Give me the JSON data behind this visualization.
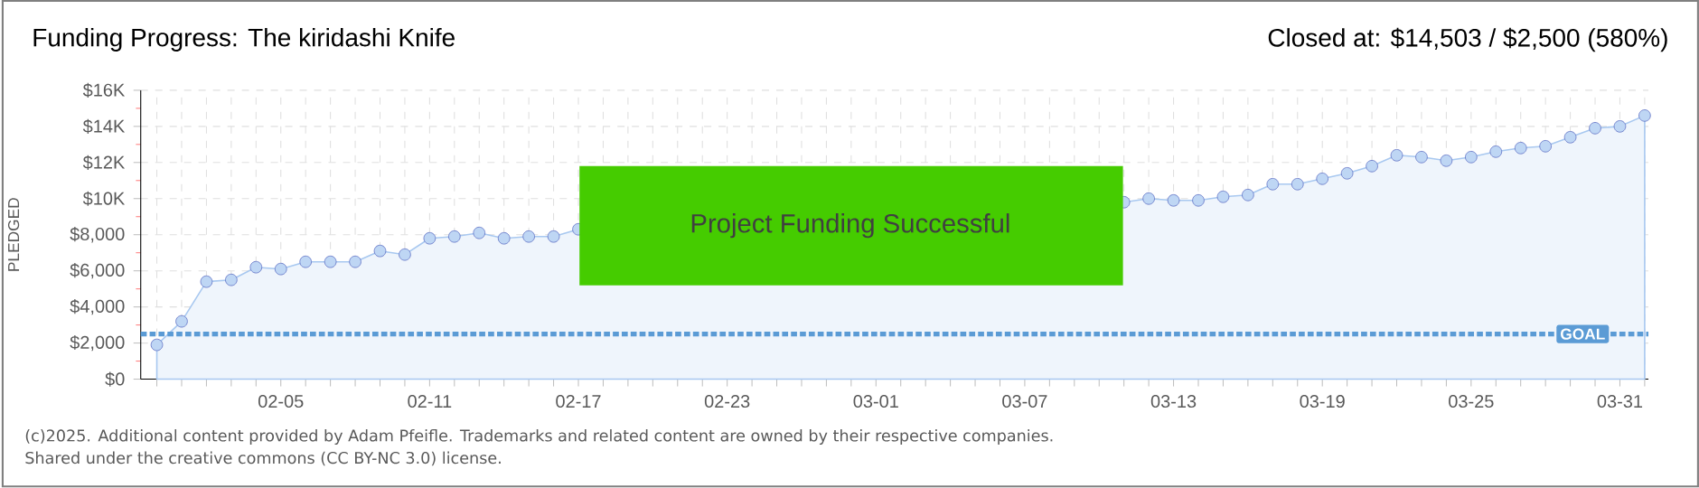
{
  "chart_data": {
    "type": "area",
    "title": "Funding Progress: The kiridashi Knife",
    "subtitle": "Closed at: $14,503 / $2,500 (580%)",
    "ylabel": "PLEDGED",
    "categories": [
      null,
      null,
      null,
      null,
      null,
      "02-05",
      null,
      null,
      null,
      null,
      null,
      "02-11",
      null,
      null,
      null,
      null,
      null,
      "02-17",
      null,
      null,
      null,
      null,
      null,
      "02-23",
      null,
      null,
      null,
      null,
      null,
      "03-01",
      null,
      null,
      null,
      null,
      null,
      "03-07",
      null,
      null,
      null,
      null,
      null,
      "03-13",
      null,
      null,
      null,
      null,
      null,
      "03-19",
      null,
      null,
      null,
      null,
      null,
      "03-25",
      null,
      null,
      null,
      null,
      null,
      "03-31",
      null
    ],
    "values": [
      1900,
      3200,
      5400,
      5500,
      6200,
      6100,
      6500,
      6500,
      6500,
      7100,
      6900,
      7800,
      7900,
      8100,
      7800,
      7900,
      7900,
      8300,
      null,
      null,
      null,
      null,
      null,
      null,
      null,
      null,
      null,
      null,
      null,
      null,
      null,
      null,
      null,
      null,
      null,
      null,
      null,
      null,
      null,
      9800,
      10000,
      9900,
      9900,
      10100,
      10200,
      10800,
      10800,
      11100,
      11400,
      11800,
      12400,
      12300,
      12100,
      12300,
      12600,
      12800,
      12900,
      13400,
      13900,
      14000,
      14600
    ],
    "color": "#a8c8f0",
    "marker": "circle",
    "grid": true,
    "ylim": [
      0,
      16000
    ],
    "yticks": [
      {
        "value": 0,
        "label": "$0"
      },
      {
        "value": 2000,
        "label": "$2,000"
      },
      {
        "value": 4000,
        "label": "$4,000"
      },
      {
        "value": 6000,
        "label": "$6,000"
      },
      {
        "value": 8000,
        "label": "$8,000"
      },
      {
        "value": 10000,
        "label": "$10K"
      },
      {
        "value": 12000,
        "label": "$12K"
      },
      {
        "value": 14000,
        "label": "$14K"
      },
      {
        "value": 16000,
        "label": "$16K"
      }
    ],
    "ref_lines": [
      {
        "axis": "y",
        "value": 2500,
        "label": "GOAL",
        "color": "#5b9bd5",
        "line_style": "dashed"
      }
    ],
    "annotations": [
      "Project Funding Successful",
      "(c)2025. Additional content provided by Adam Pfeifle. Trademarks and related content are owned by their respective companies.",
      "Shared under the creative commons (CC BY-NC 3.0) license."
    ]
  }
}
